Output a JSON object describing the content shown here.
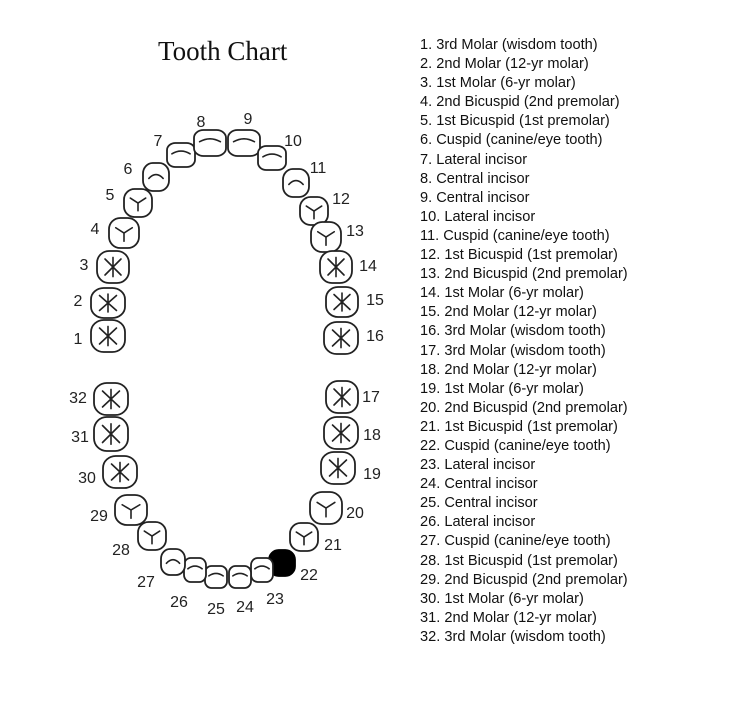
{
  "title": "Tooth Chart",
  "marked_tooth": 22,
  "teeth": [
    {
      "n": 1,
      "label": "1. 3rd Molar (wisdom tooth)"
    },
    {
      "n": 2,
      "label": "2. 2nd Molar (12-yr molar)"
    },
    {
      "n": 3,
      "label": "3. 1st Molar (6-yr molar)"
    },
    {
      "n": 4,
      "label": "4. 2nd Bicuspid (2nd premolar)"
    },
    {
      "n": 5,
      "label": "5. 1st Bicuspid (1st premolar)"
    },
    {
      "n": 6,
      "label": "6. Cuspid (canine/eye tooth)"
    },
    {
      "n": 7,
      "label": "7. Lateral incisor"
    },
    {
      "n": 8,
      "label": "8. Central incisor"
    },
    {
      "n": 9,
      "label": "9. Central incisor"
    },
    {
      "n": 10,
      "label": "10. Lateral incisor"
    },
    {
      "n": 11,
      "label": "11. Cuspid (canine/eye tooth)"
    },
    {
      "n": 12,
      "label": "12. 1st Bicuspid (1st premolar)"
    },
    {
      "n": 13,
      "label": "13. 2nd Bicuspid (2nd premolar)"
    },
    {
      "n": 14,
      "label": "14. 1st Molar (6-yr molar)"
    },
    {
      "n": 15,
      "label": "15. 2nd Molar (12-yr molar)"
    },
    {
      "n": 16,
      "label": "16. 3rd Molar (wisdom tooth)"
    },
    {
      "n": 17,
      "label": "17. 3rd Molar (wisdom tooth)"
    },
    {
      "n": 18,
      "label": "18. 2nd Molar (12-yr molar)"
    },
    {
      "n": 19,
      "label": "19. 1st Molar (6-yr molar)"
    },
    {
      "n": 20,
      "label": "20. 2nd Bicuspid (2nd premolar)"
    },
    {
      "n": 21,
      "label": "21. 1st Bicuspid (1st premolar)"
    },
    {
      "n": 22,
      "label": "22. Cuspid (canine/eye tooth)"
    },
    {
      "n": 23,
      "label": "23. Lateral incisor"
    },
    {
      "n": 24,
      "label": "24. Central incisor"
    },
    {
      "n": 25,
      "label": "25. Central incisor"
    },
    {
      "n": 26,
      "label": "26. Lateral incisor"
    },
    {
      "n": 27,
      "label": "27. Cuspid (canine/eye tooth)"
    },
    {
      "n": 28,
      "label": "28. 1st Bicuspid (1st premolar)"
    },
    {
      "n": 29,
      "label": "29. 2nd Bicuspid (2nd premolar)"
    },
    {
      "n": 30,
      "label": "30. 1st Molar (6-yr molar)"
    },
    {
      "n": 31,
      "label": "31. 2nd Molar (12-yr molar)"
    },
    {
      "n": 32,
      "label": "32. 3rd Molar (wisdom tooth)"
    }
  ]
}
